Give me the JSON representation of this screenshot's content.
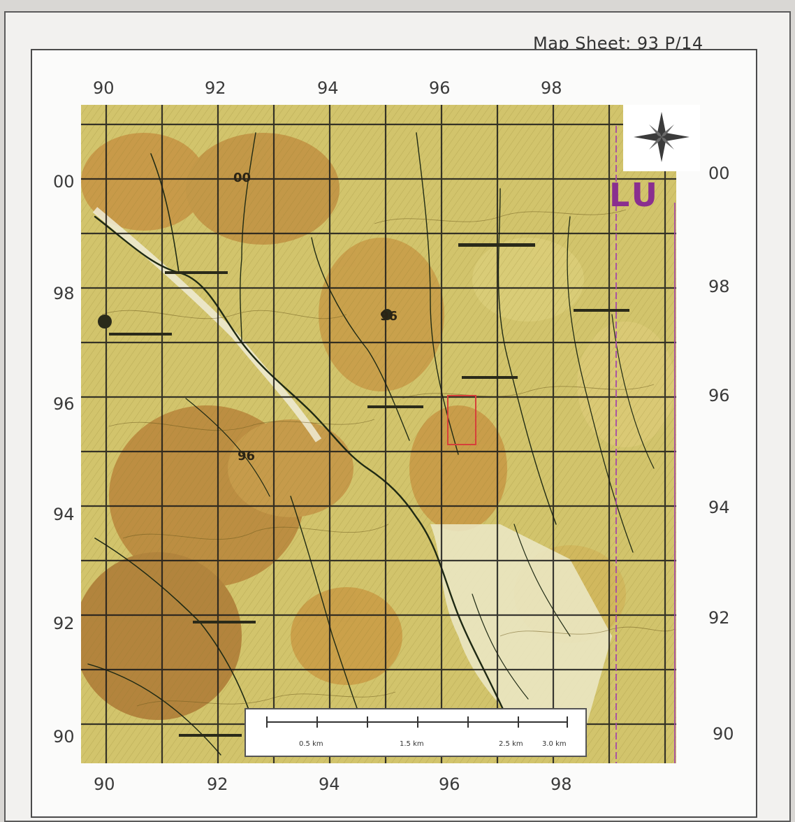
{
  "sheet": {
    "title": "Map Sheet; 93 P/14"
  },
  "grid": {
    "top_ticks": [
      "90",
      "92",
      "94",
      "96",
      "98"
    ],
    "bottom_ticks": [
      "90",
      "92",
      "94",
      "96",
      "98"
    ],
    "left_ticks": [
      "00",
      "98",
      "96",
      "94",
      "92",
      "90"
    ],
    "right_ticks": [
      "00",
      "98",
      "96",
      "94",
      "92",
      "90"
    ]
  },
  "map": {
    "overlay_text": "LU",
    "spot_labels": [
      "00",
      "96",
      "96"
    ],
    "colors": {
      "land": "#d2c46c",
      "ridge": "#b7863c",
      "drainage": "#1f2a14",
      "grid": "#1a1a1a",
      "boundary": "#a54aa8"
    }
  },
  "scale": {
    "labels": [
      "0.5 km",
      "1.5 km",
      "2.5 km",
      "3.0 km"
    ]
  },
  "icons": {
    "north_arrow": "compass-rose-icon"
  }
}
